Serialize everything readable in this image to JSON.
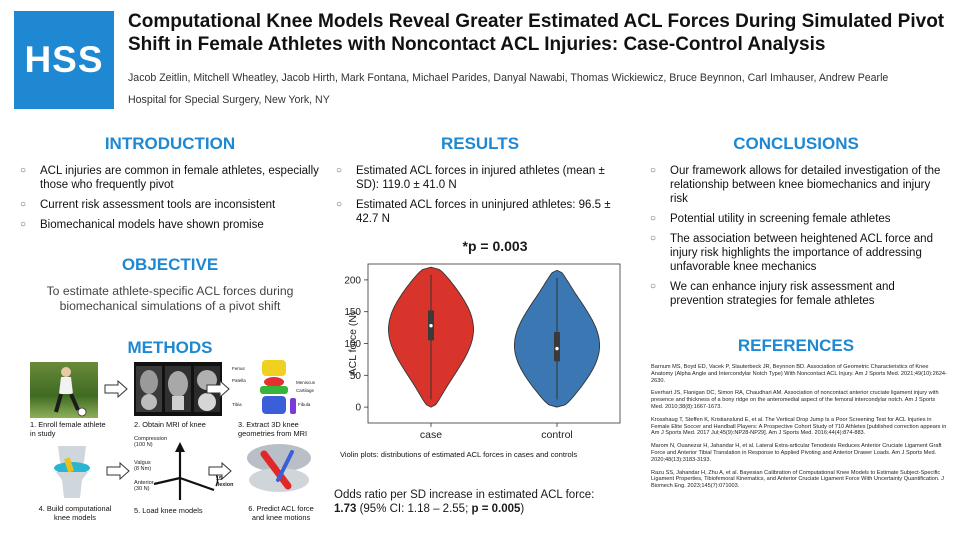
{
  "header": {
    "logo_text": "HSS",
    "title": "Computational Knee Models Reveal Greater Estimated ACL Forces During Simulated Pivot Shift in Female Athletes with Noncontact ACL Injuries: Case-Control Analysis",
    "authors": "Jacob Zeitlin, Mitchell Wheatley, Jacob Hirth, Mark Fontana, Michael Parides, Danyal Nawabi, Thomas Wickiewicz, Bruce Beynnon, Carl Imhauser, Andrew Pearle",
    "affiliation": "Hospital for Special Surgery, New York, NY"
  },
  "introduction": {
    "heading": "INTRODUCTION",
    "items": [
      "ACL injuries are common in female athletes, especially those who frequently pivot",
      "Current risk assessment tools are inconsistent",
      "Biomechanical models have shown promise"
    ]
  },
  "objective": {
    "heading": "OBJECTIVE",
    "text": "To estimate athlete-specific ACL forces during biomechanical simulations of a pivot shift"
  },
  "methods": {
    "heading": "METHODS",
    "steps": [
      "1. Enroll female athlete\nin study",
      "2. Obtain MRI of knee",
      "3. Extract 3D knee\ngeometries from MRI",
      "4. Build computational\nknee models",
      "5. Load knee models",
      "6. Predict ACL force\nand knee motions"
    ],
    "load_labels": {
      "compression": "Compression\n(100 N)",
      "valgus": "Valgus\n(8 Nm)",
      "anterior": "Anterior\n(30 N)",
      "flexion": "15°\nflexion"
    },
    "anatomy_labels": [
      "Femur",
      "Patella",
      "Tibia",
      "Fibula",
      "Meniscus",
      "Cartilage"
    ]
  },
  "results": {
    "heading": "RESULTS",
    "items": [
      "Estimated ACL forces in injured athletes (mean ± SD): 119.0 ± 41.0 N",
      "Estimated ACL forces in uninjured athletes: 96.5 ± 42.7 N"
    ],
    "plot_title": "*p = 0.003",
    "plot_caption": "Violin plots: distributions of estimated ACL forces in cases and controls",
    "odds_text": "Odds ratio per SD increase in estimated ACL force:",
    "odds_value": "1.73",
    "odds_ci": " (95% CI: 1.18 – 2.55; ",
    "odds_p": "p = 0.005",
    "odds_close": ")"
  },
  "chart_data": {
    "type": "violin",
    "title": "*p = 0.003",
    "xlabel": "",
    "ylabel": "ACL force (N)",
    "categories": [
      "case",
      "control"
    ],
    "colors": [
      "#d9342b",
      "#3a77b3"
    ],
    "medians": [
      128,
      92
    ],
    "iqr": [
      [
        105,
        152
      ],
      [
        72,
        118
      ]
    ],
    "range": [
      [
        0,
        220
      ],
      [
        0,
        215
      ]
    ],
    "ylim": [
      -25,
      225
    ],
    "yticks": [
      0,
      50,
      100,
      150,
      200
    ],
    "summary": [
      {
        "name": "case",
        "mean": 119.0,
        "sd": 41.0
      },
      {
        "name": "control",
        "mean": 96.5,
        "sd": 42.7
      }
    ]
  },
  "conclusions": {
    "heading": "CONCLUSIONS",
    "items": [
      "Our framework allows for detailed investigation of the relationship between knee biomechanics and injury risk",
      "Potential utility in screening female athletes",
      "The association between heightened ACL force and injury risk highlights the importance of addressing unfavorable knee mechanics",
      "We can enhance injury risk assessment and prevention strategies for female athletes"
    ]
  },
  "references": {
    "heading": "REFERENCES",
    "items": [
      "Barnum MS, Boyd ED, Vacek P, Slauterbeck JR, Beynnon BD. Association of Geometric Characteristics of Knee Anatomy (Alpha Angle and Intercondylar Notch Type) With Noncontact ACL Injury. Am J Sports Med. 2021;49(10):2624-2630.",
      "Everhart JS, Flanigan DC, Simon RA, Chaudhari AM. Association of noncontact anterior cruciate ligament injury with presence and thickness of a bony ridge on the anteromedial aspect of the femoral intercondylar notch. Am J Sports Med. 2010;38(8):1667-1673.",
      "Krosshaug T, Steffen K, Kristianslund E, et al. The Vertical Drop Jump Is a Poor Screening Test for ACL Injuries in Female Elite Soccer and Handball Players: A Prospective Cohort Study of 710 Athletes [published correction appears in Am J Sports Med. 2017 Jul;45(9):NP28-NP29]. Am J Sports Med. 2016;44(4):874-883.",
      "Marom N, Ouanezar H, Jahandar H, et al. Lateral Extra-articular Tenodesis Reduces Anterior Cruciate Ligament Graft Force and Anterior Tibial Translation in Response to Applied Pivoting and Anterior Drawer Loads. Am J Sports Med. 2020;48(13):3183-3193.",
      "Razu SS, Jahandar H, Zhu A, et al. Bayesian Calibration of Computational Knee Models to Estimate Subject-Specific Ligament Properties, Tibiofemoral Kinematics, and Anterior Cruciate Ligament Force With Uncertainty Quantification. J Biomech Eng. 2023;145(7):071003."
    ]
  },
  "icons": {
    "bullet": "circle-bullet-icon",
    "arrow": "right-arrow-icon"
  }
}
